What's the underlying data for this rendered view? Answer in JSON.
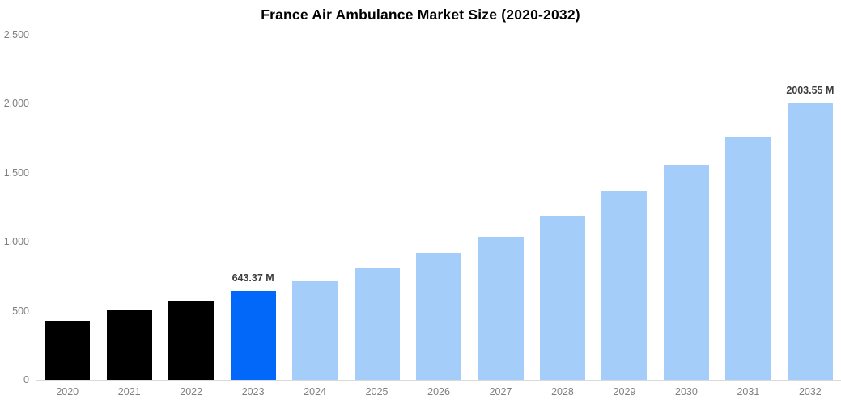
{
  "chart_data": {
    "type": "bar",
    "title": "France Air Ambulance Market Size (2020-2032)",
    "categories": [
      "2020",
      "2021",
      "2022",
      "2023",
      "2024",
      "2025",
      "2026",
      "2027",
      "2028",
      "2029",
      "2030",
      "2031",
      "2032"
    ],
    "values": [
      430,
      505,
      572,
      643.37,
      715,
      808,
      917,
      1034,
      1186,
      1362,
      1557,
      1763,
      2003.55
    ],
    "value_labels": [
      "",
      "",
      "",
      "643.37 M",
      "",
      "",
      "",
      "",
      "",
      "",
      "",
      "",
      "2003.55 M"
    ],
    "bar_roles": [
      "historical",
      "historical",
      "historical",
      "current",
      "forecast",
      "forecast",
      "forecast",
      "forecast",
      "forecast",
      "forecast",
      "forecast",
      "forecast",
      "forecast"
    ],
    "xlabel": "",
    "ylabel": "",
    "ylim": [
      0,
      2500
    ],
    "y_ticks": [
      {
        "value": 2500,
        "label": "2,500"
      },
      {
        "value": 2000,
        "label": "2,000"
      },
      {
        "value": 1500,
        "label": "1,500"
      },
      {
        "value": 1000,
        "label": "1,000"
      },
      {
        "value": 500,
        "label": "500"
      },
      {
        "value": 0,
        "label": "0"
      }
    ],
    "grid": false,
    "legend": null
  },
  "colors": {
    "historical": "#000000",
    "current": "#0268fa",
    "forecast": "#a4cef9",
    "axis": "#d9d9d9",
    "tick_label": "#7f7f7f",
    "value_label": "#3c3c3c",
    "title": "#000000",
    "background": "#ffffff"
  }
}
